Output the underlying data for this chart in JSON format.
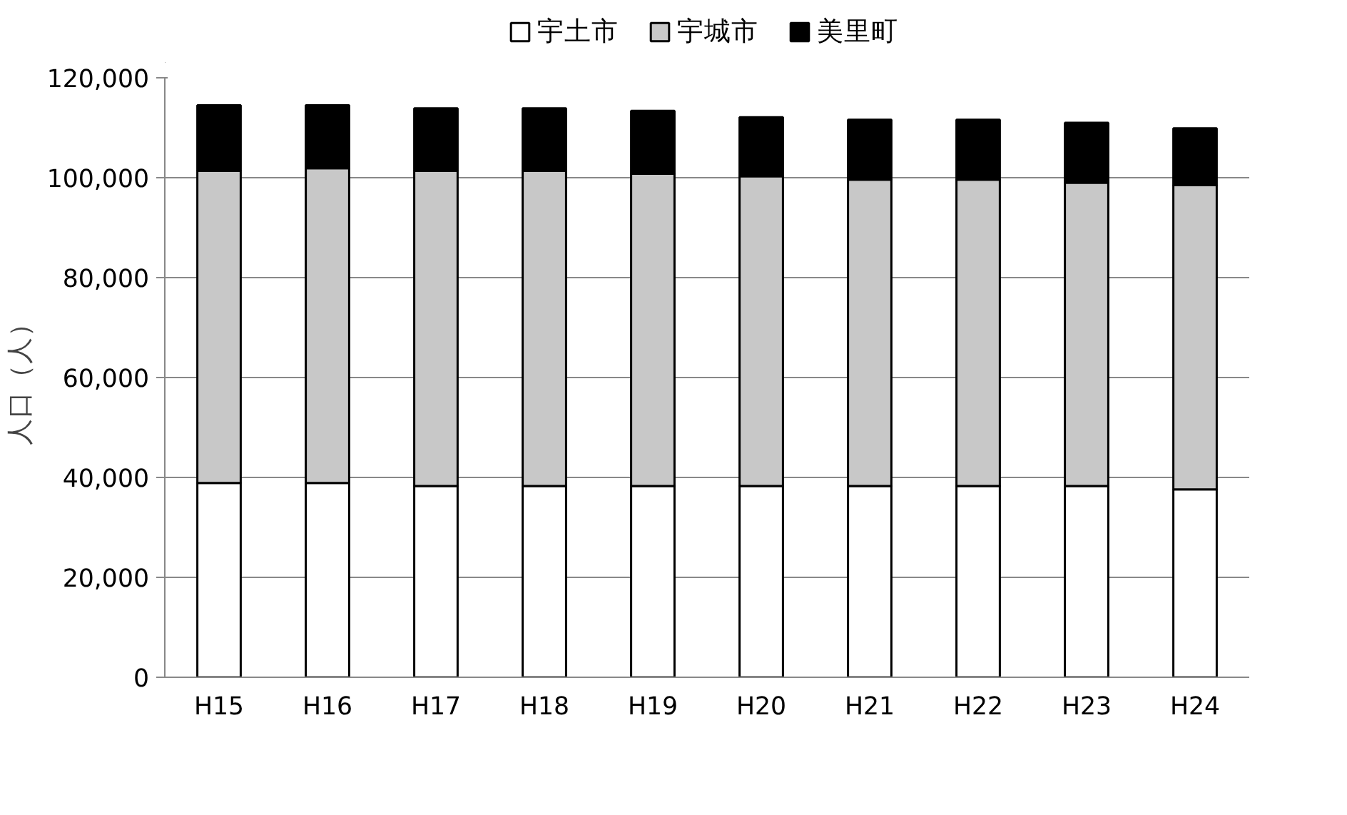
{
  "chart_data": {
    "type": "bar",
    "stacked": true,
    "ylabel": "人口（人）",
    "categories": [
      "H15",
      "H16",
      "H17",
      "H18",
      "H19",
      "H20",
      "H21",
      "H22",
      "H23",
      "H24"
    ],
    "series": [
      {
        "name": "宇土市",
        "color": "#ffffff",
        "values": [
          38900,
          38900,
          38300,
          38300,
          38300,
          38300,
          38300,
          38300,
          38300,
          37600
        ]
      },
      {
        "name": "宇城市",
        "color": "#c8c8c8",
        "values": [
          62500,
          63000,
          63100,
          63100,
          62500,
          62000,
          61300,
          61300,
          60700,
          60900
        ]
      },
      {
        "name": "美里町",
        "color": "#000000",
        "values": [
          13100,
          12600,
          12500,
          12500,
          12600,
          11800,
          12000,
          12000,
          12000,
          11400
        ]
      }
    ],
    "ylim": [
      0,
      120000
    ],
    "yticks": [
      {
        "value": 0,
        "label": "0"
      },
      {
        "value": 20000,
        "label": "20,000"
      },
      {
        "value": 40000,
        "label": "40,000"
      },
      {
        "value": 60000,
        "label": "60,000"
      },
      {
        "value": 80000,
        "label": "80,000"
      },
      {
        "value": 100000,
        "label": "100,000"
      },
      {
        "value": 120000,
        "label": "120,000"
      }
    ],
    "grid": "y",
    "legend": "top"
  }
}
